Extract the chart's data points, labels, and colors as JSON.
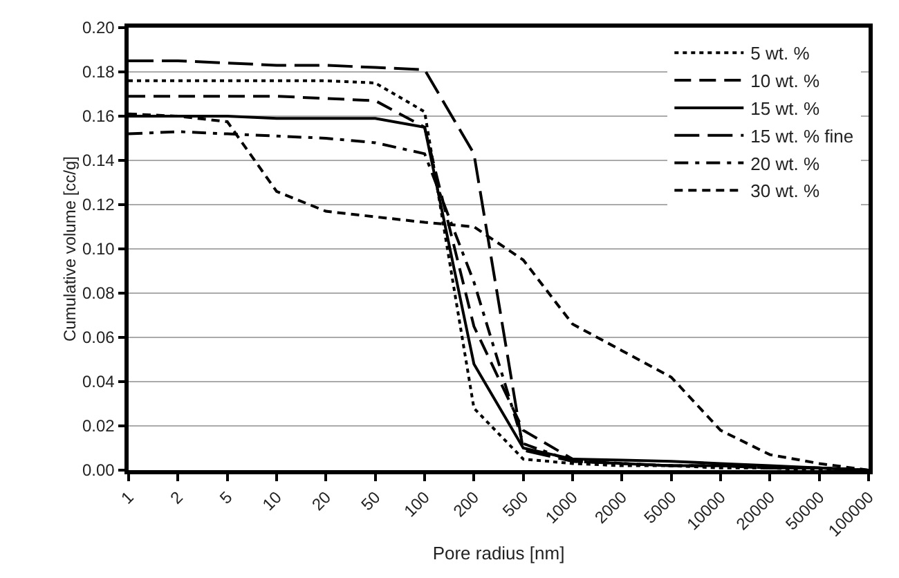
{
  "chart_data": {
    "type": "line",
    "xlabel": "Pore radius [nm]",
    "ylabel": "Cumulative volume [cc/g]",
    "categories": [
      "1",
      "2",
      "5",
      "10",
      "20",
      "50",
      "100",
      "200",
      "500",
      "1000",
      "2000",
      "5000",
      "10000",
      "20000",
      "50000",
      "100000"
    ],
    "ylim": [
      0,
      0.2
    ],
    "yticks": [
      {
        "value": 0,
        "label": "0.00"
      },
      {
        "value": 0.02,
        "label": "0.02"
      },
      {
        "value": 0.04,
        "label": "0.04"
      },
      {
        "value": 0.06,
        "label": "0.06"
      },
      {
        "value": 0.08,
        "label": "0.08"
      },
      {
        "value": 0.1,
        "label": "0.10"
      },
      {
        "value": 0.12,
        "label": "0.12"
      },
      {
        "value": 0.14,
        "label": "0.14"
      },
      {
        "value": 0.16,
        "label": "0.16"
      },
      {
        "value": 0.18,
        "label": "0.18"
      },
      {
        "value": 0.2,
        "label": "0.20"
      }
    ],
    "grid": "y",
    "legend": "top right",
    "marker": "none",
    "series": [
      {
        "name": "5 wt. %",
        "color": "#000000",
        "line_style": "dotted",
        "values": [
          0.176,
          0.176,
          0.176,
          0.176,
          0.176,
          0.175,
          0.162,
          0.028,
          0.005,
          0.003,
          0.002,
          0.002,
          0.001,
          0.001,
          0,
          0
        ]
      },
      {
        "name": "10 wt. %",
        "color": "#000000",
        "line_style": "dashed",
        "values": [
          0.169,
          0.169,
          0.169,
          0.169,
          0.168,
          0.167,
          0.155,
          0.065,
          0.018,
          0.005,
          0.003,
          0.002,
          0.002,
          0.001,
          0.001,
          0
        ]
      },
      {
        "name": "15 wt. %",
        "color": "#000000",
        "line_style": "solid",
        "values": [
          0.16,
          0.16,
          0.16,
          0.159,
          0.159,
          0.159,
          0.155,
          0.048,
          0.01,
          0.005,
          0.0045,
          0.004,
          0.003,
          0.002,
          0.001,
          0
        ]
      },
      {
        "name": "15 wt. % fine",
        "color": "#000000",
        "line_style": "longdash",
        "values": [
          0.185,
          0.185,
          0.184,
          0.183,
          0.183,
          0.182,
          0.181,
          0.143,
          0.009,
          0.004,
          0.003,
          0.002,
          0.002,
          0.001,
          0.001,
          0
        ]
      },
      {
        "name": "20 wt. %",
        "color": "#000000",
        "line_style": "dashdot",
        "values": [
          0.152,
          0.153,
          0.152,
          0.151,
          0.15,
          0.148,
          0.143,
          0.085,
          0.012,
          0.004,
          0.003,
          0.002,
          0.002,
          0.001,
          0.001,
          0
        ]
      },
      {
        "name": "30 wt. %",
        "color": "#000000",
        "line_style": "shortdash",
        "values": [
          0.161,
          0.16,
          0.1575,
          0.126,
          0.117,
          0.1145,
          0.112,
          0.11,
          0.095,
          0.066,
          0.054,
          0.042,
          0.018,
          0.007,
          0.003,
          0
        ]
      }
    ]
  }
}
